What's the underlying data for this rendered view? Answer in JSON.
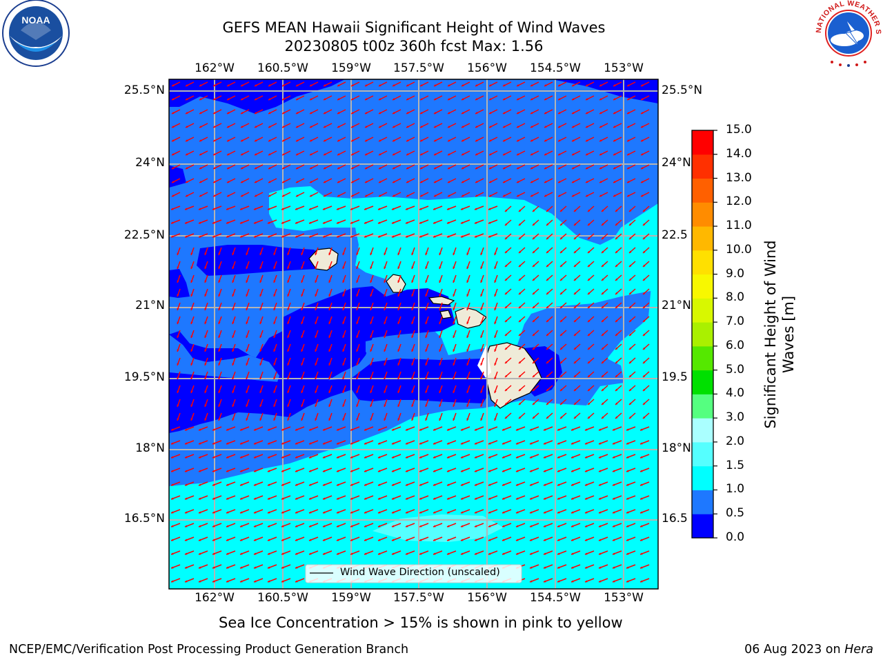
{
  "title": {
    "line1": "GEFS MEAN Hawaii Significant Height of Wind Waves",
    "line2": "20230805 t00z 360h fcst   Max: 1.56"
  },
  "longitude_labels": [
    "162°W",
    "160.5°W",
    "159°W",
    "157.5°W",
    "156°W",
    "154.5°W",
    "153°W"
  ],
  "latitude_labels": [
    "25.5°N",
    "24°N",
    "22.5°N",
    "21°N",
    "19.5°N",
    "18°N",
    "16.5°N"
  ],
  "right_latitude_labels": [
    "25.5°N",
    "24°N",
    "22.5",
    "21°N",
    "19.5",
    "18°N",
    "16.5"
  ],
  "colorbar": {
    "label": "Significant Height of Wind Waves [m]",
    "label_line1": "Significant Height of Wind",
    "label_line2": "Waves [m]",
    "ticks": [
      "0.0",
      "0.5",
      "1.0",
      "1.5",
      "2.0",
      "3.0",
      "4.0",
      "5.0",
      "6.0",
      "7.0",
      "8.0",
      "9.0",
      "10.0",
      "11.0",
      "12.0",
      "13.0",
      "14.0",
      "15.0"
    ],
    "colors": [
      "#0000ff",
      "#1e78ff",
      "#00ffff",
      "#55ffff",
      "#aaffff",
      "#55ff80",
      "#00e000",
      "#55e800",
      "#aaf000",
      "#d8f800",
      "#f8f800",
      "#ffe000",
      "#ffb800",
      "#ff8c00",
      "#ff6000",
      "#ff3000",
      "#ff0000"
    ]
  },
  "legend": {
    "label": "Wind Wave Direction (unscaled)"
  },
  "caption": "Sea Ice Concentration > 15% is shown in pink to yellow",
  "footer": {
    "left": "NCEP/EMC/Verification Post Processing Product Generation Branch",
    "right_date": "06 Aug 2023 on ",
    "right_host": "Hera"
  },
  "logos": {
    "noaa_text": "NOAA",
    "nws_text": "NATIONAL WEATHER SERVICE"
  },
  "map_colors": {
    "band_0_05": "#0000ff",
    "band_05_10": "#1e78ff",
    "band_10_15": "#00ffff",
    "band_15_20": "#55ffff",
    "land": "#efebd8",
    "arrow": "#ff0000",
    "grid": "#b4b4b4"
  }
}
